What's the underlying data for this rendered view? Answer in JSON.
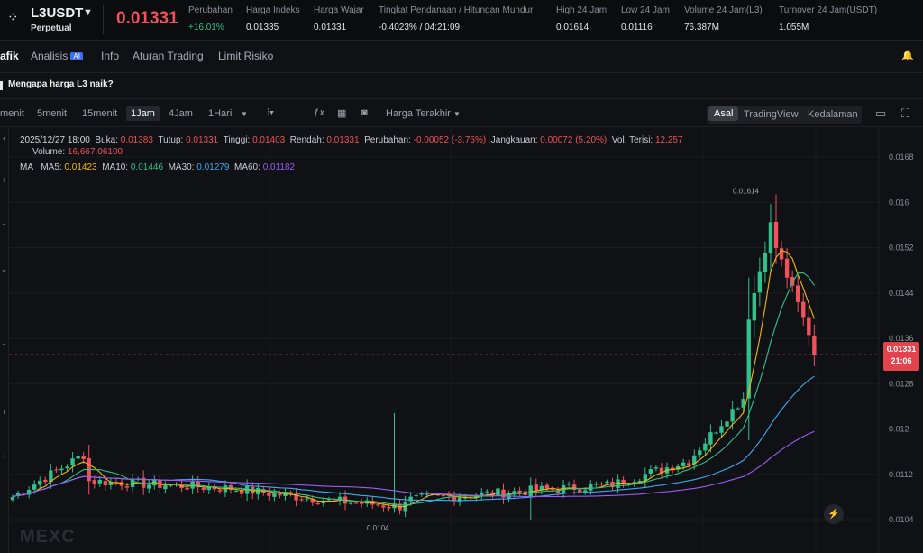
{
  "header": {
    "symbol": "L3USDT",
    "contract_type": "Perpetual",
    "last_price": "0.01331",
    "stats": [
      {
        "label": "Perubahan",
        "value": "+16.01%",
        "positive": true
      },
      {
        "label": "Harga Indeks",
        "value": "0.01335"
      },
      {
        "label": "Harga Wajar",
        "value": "0.01331"
      },
      {
        "label": "Tingkat Pendanaan / Hitungan Mundur",
        "value": "-0.4023% / 04:21:09"
      },
      {
        "label": "High 24 Jam",
        "value": "0.01614"
      },
      {
        "label": "Low 24 Jam",
        "value": "0.01116"
      },
      {
        "label": "Volume 24 Jam(L3)",
        "value": "76.387M"
      },
      {
        "label": "Turnover 24 Jam(USDT)",
        "value": "1.055M"
      }
    ]
  },
  "tabs": {
    "items": [
      "afik",
      "Analisis",
      "Info",
      "Aturan Trading",
      "Limit Risiko"
    ],
    "ai_badge": "AI",
    "active": "afik"
  },
  "banner": {
    "text": "Mengapa harga L3 naik?"
  },
  "toolbar": {
    "timeframes": [
      "menit",
      "5menit",
      "15menit",
      "1Jam",
      "4Jam",
      "1Hari"
    ],
    "active_timeframe": "1Jam",
    "price_source": "Harga Terakhir",
    "views": [
      "Asal",
      "TradingView",
      "Kedalaman"
    ],
    "active_view": "Asal"
  },
  "legend": {
    "datetime": "2025/12/27 18:00",
    "open_label": "Buka:",
    "open": "0.01383",
    "close_label": "Tutup:",
    "close": "0.01331",
    "high_label": "Tinggi:",
    "high": "0.01403",
    "low_label": "Rendah:",
    "low": "0.01331",
    "change_label": "Perubahan:",
    "change": "-0.00052 (-3.75%)",
    "range_label": "Jangkauan:",
    "range": "0.00072 (5.20%)",
    "vol_filled_label": "Vol. Terisi:",
    "vol_filled": "12,257",
    "volume_label": "Volume:",
    "volume": "16,667.06100",
    "ma_label": "MA",
    "ma5_label": "MA5:",
    "ma5": "0.01423",
    "ma10_label": "MA10:",
    "ma10": "0.01446",
    "ma30_label": "MA30:",
    "ma30": "0.01279",
    "ma60_label": "MA60:",
    "ma60": "0.01182"
  },
  "price_tag": {
    "price": "0.01331",
    "countdown": "21:06"
  },
  "watermark": "MEXC",
  "colors": {
    "up": "#2fc08b",
    "down": "#f0515a",
    "ma5": "#f0b90b",
    "ma10": "#2fc08b",
    "ma30": "#3fa9f5",
    "ma60": "#9b5cf6",
    "background": "#101114"
  },
  "chart_data": {
    "type": "candlestick",
    "title": "",
    "xlabel": "",
    "ylabel": "",
    "ylim": [
      0.01,
      0.0172
    ],
    "y_ticks": [
      "0.0168",
      "0.016",
      "0.0152",
      "0.0144",
      "0.0136",
      "0.0128",
      "0.012",
      "0.0112",
      "0.0104"
    ],
    "y_tick_values": [
      0.0168,
      0.016,
      0.0152,
      0.0144,
      0.0136,
      0.0128,
      0.012,
      0.0112,
      0.0104
    ],
    "annotations": [
      {
        "text": "0.01614",
        "value": 0.01614
      },
      {
        "text": "0.0104",
        "value": 0.0104
      }
    ],
    "last_price_line": 0.01331
  }
}
